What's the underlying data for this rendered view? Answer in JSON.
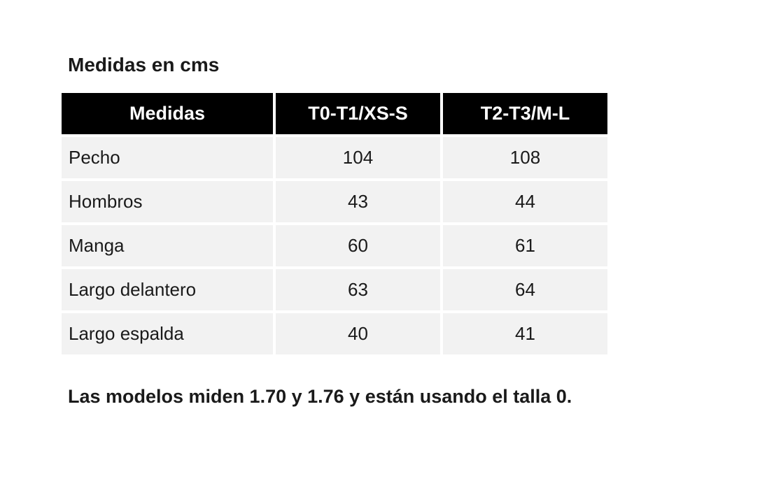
{
  "page": {
    "title": "Medidas en cms",
    "footer_note": "Las modelos miden 1.70 y 1.76 y están usando el talla 0."
  },
  "table": {
    "headers": [
      "Medidas",
      "T0-T1/XS-S",
      "T2-T3/M-L"
    ],
    "rows": [
      {
        "label": "Pecho",
        "values": [
          "104",
          "108"
        ]
      },
      {
        "label": "Hombros",
        "values": [
          "43",
          "44"
        ]
      },
      {
        "label": "Manga",
        "values": [
          "60",
          "61"
        ]
      },
      {
        "label": "Largo delantero",
        "values": [
          "63",
          "64"
        ]
      },
      {
        "label": "Largo espalda",
        "values": [
          "40",
          "41"
        ]
      }
    ],
    "colors": {
      "header_bg": "#000000",
      "header_text": "#ffffff",
      "row_bg": "#f2f2f2",
      "text": "#1a1a1a",
      "page_bg": "#ffffff"
    }
  }
}
